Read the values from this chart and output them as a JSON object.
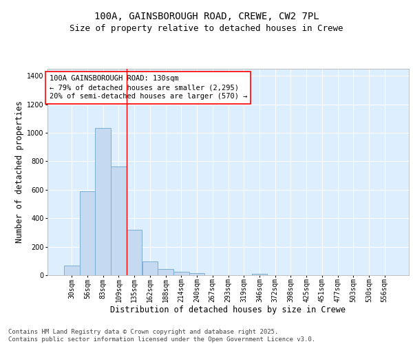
{
  "title_line1": "100A, GAINSBOROUGH ROAD, CREWE, CW2 7PL",
  "title_line2": "Size of property relative to detached houses in Crewe",
  "xlabel": "Distribution of detached houses by size in Crewe",
  "ylabel": "Number of detached properties",
  "bar_color": "#c5daf0",
  "bar_edge_color": "#7aafd4",
  "background_color": "#ddeeff",
  "grid_color": "#ffffff",
  "fig_background": "#ffffff",
  "categories": [
    "30sqm",
    "56sqm",
    "83sqm",
    "109sqm",
    "135sqm",
    "162sqm",
    "188sqm",
    "214sqm",
    "240sqm",
    "267sqm",
    "293sqm",
    "319sqm",
    "346sqm",
    "372sqm",
    "398sqm",
    "425sqm",
    "451sqm",
    "477sqm",
    "503sqm",
    "530sqm",
    "556sqm"
  ],
  "values": [
    70,
    590,
    1035,
    765,
    320,
    95,
    43,
    22,
    14,
    0,
    0,
    0,
    12,
    0,
    0,
    0,
    0,
    0,
    0,
    0,
    0
  ],
  "ylim": [
    0,
    1450
  ],
  "yticks": [
    0,
    200,
    400,
    600,
    800,
    1000,
    1200,
    1400
  ],
  "red_line_x": 3.5,
  "annotation_title": "100A GAINSBOROUGH ROAD: 130sqm",
  "annotation_line1": "← 79% of detached houses are smaller (2,295)",
  "annotation_line2": "20% of semi-detached houses are larger (570) →",
  "footer_line1": "Contains HM Land Registry data © Crown copyright and database right 2025.",
  "footer_line2": "Contains public sector information licensed under the Open Government Licence v3.0.",
  "title_fontsize": 10,
  "subtitle_fontsize": 9,
  "axis_label_fontsize": 8.5,
  "tick_fontsize": 7,
  "annotation_fontsize": 7.5,
  "footer_fontsize": 6.5
}
